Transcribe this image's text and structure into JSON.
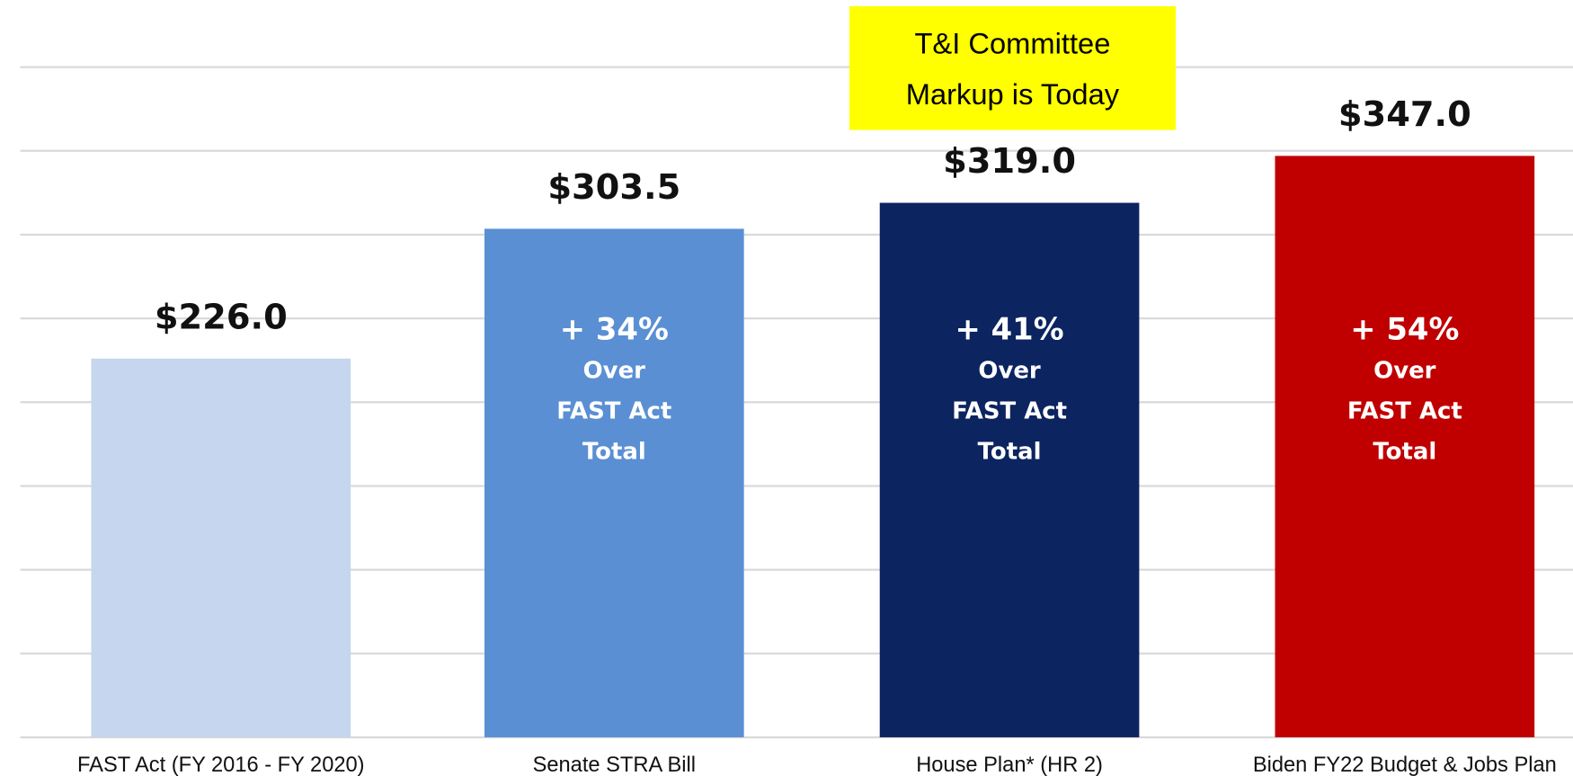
{
  "chart_data": {
    "type": "bar",
    "categories": [
      "FAST Act (FY 2016 - FY 2020)",
      "Senate STRA Bill",
      "House Plan* (HR 2)",
      "Biden FY22 Budget & Jobs Plan"
    ],
    "values": [
      226.0,
      303.5,
      319.0,
      347.0
    ],
    "value_labels": [
      "$226.0",
      "$303.5",
      "$319.0",
      "$347.0"
    ],
    "colors": [
      "#c5d6ee",
      "#5a8fd4",
      "#0c2460",
      "#c00000"
    ],
    "bar_labels": [
      [],
      [
        "+ 34%",
        "Over",
        "FAST Act",
        "Total"
      ],
      [
        "+ 41%",
        "Over",
        "FAST Act",
        "Total"
      ],
      [
        "+ 54%",
        "Over",
        "FAST Act",
        "Total"
      ]
    ],
    "callout": [
      "T&I Committee",
      "Markup is Today"
    ],
    "ylim": [
      0,
      400
    ],
    "yticks": [
      0,
      50,
      100,
      150,
      200,
      250,
      300,
      350,
      400
    ],
    "grid": true
  }
}
